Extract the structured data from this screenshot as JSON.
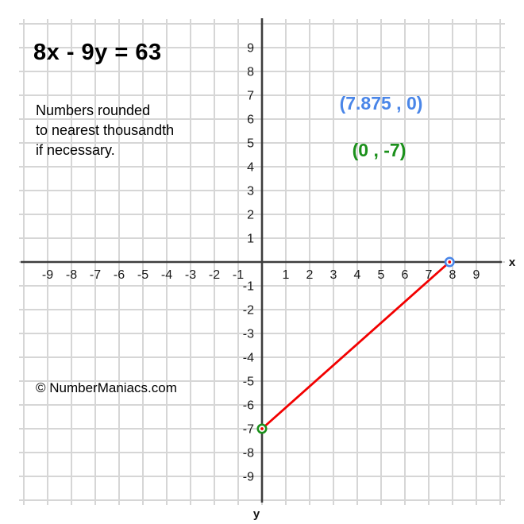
{
  "page": {
    "background": "#ffffff"
  },
  "header": {
    "equation": "8x - 9y = 63"
  },
  "note": {
    "lines": [
      "Numbers rounded",
      "to nearest thousandth",
      "if necessary."
    ]
  },
  "intercept_labels": {
    "x_intercept": "(7.875 , 0)",
    "y_intercept": "(0 , -7)"
  },
  "watermark": "© NumberManiacs.com",
  "colors": {
    "line": "#f20000",
    "x_intercept": "#4a86e8",
    "y_intercept": "#1b901b",
    "grid": "#d6d6d6",
    "axis": "#3d3d3d",
    "tick_text": "#1a1a1a"
  },
  "chart_data": {
    "type": "line",
    "title": "8x - 9y = 63",
    "xlabel": "x",
    "ylabel": "y",
    "xlim": [
      -10,
      10
    ],
    "ylim": [
      -10,
      10
    ],
    "grid": true,
    "legend": false,
    "x_ticks": [
      -9,
      -8,
      -7,
      -6,
      -5,
      -4,
      -3,
      -2,
      -1,
      1,
      2,
      3,
      4,
      5,
      6,
      7,
      8,
      9
    ],
    "y_ticks": [
      9,
      8,
      7,
      6,
      5,
      4,
      3,
      2,
      1,
      -1,
      -2,
      -3,
      -4,
      -5,
      -6,
      -7,
      -8,
      -9
    ],
    "series": [
      {
        "name": "8x - 9y = 63",
        "x": [
          0,
          7.875
        ],
        "y": [
          -7,
          0
        ],
        "color": "#f20000"
      }
    ],
    "points": [
      {
        "name": "x-intercept",
        "x": 7.875,
        "y": 0,
        "label": "(7.875 , 0)",
        "color": "#4a86e8"
      },
      {
        "name": "y-intercept",
        "x": 0,
        "y": -7,
        "label": "(0 , -7)",
        "color": "#1b901b"
      }
    ]
  }
}
